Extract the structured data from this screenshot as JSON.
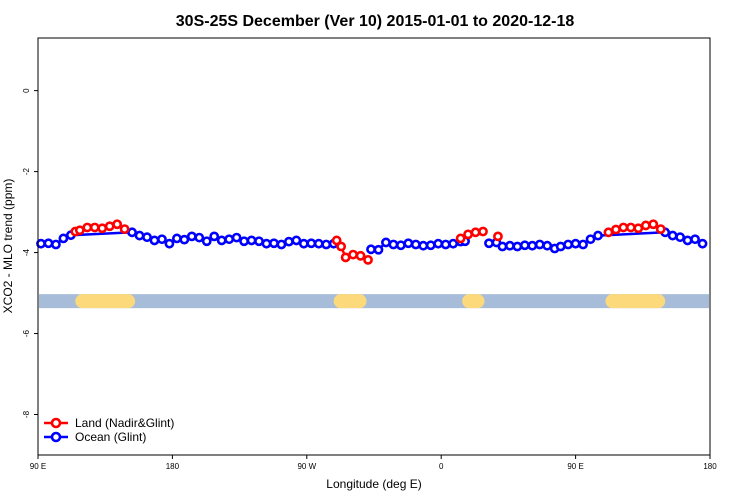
{
  "chart_data": {
    "type": "line",
    "title": "30S-25S December (Ver 10)   2015-01-01 to 2020-12-18",
    "xlabel": "Longitude (deg E)",
    "ylabel": "XCO2 - MLO trend (ppm)",
    "xlim": [
      90,
      540
    ],
    "ylim": [
      -9,
      1.3
    ],
    "x_ticks": [
      {
        "value": 90,
        "label": "90 E"
      },
      {
        "value": 180,
        "label": "180"
      },
      {
        "value": 270,
        "label": "90 W"
      },
      {
        "value": 360,
        "label": "0"
      },
      {
        "value": 450,
        "label": "90 E"
      },
      {
        "value": 540,
        "label": "180"
      }
    ],
    "y_ticks": [
      {
        "value": 0,
        "label": "0"
      },
      {
        "value": -2,
        "label": "-2"
      },
      {
        "value": -4,
        "label": "-4"
      },
      {
        "value": -6,
        "label": "-6"
      },
      {
        "value": -8,
        "label": "-8"
      }
    ],
    "land_mask": {
      "y": -5.2,
      "ocean_color": "#a7bcd9",
      "land_color": "#fcd97a",
      "land_ranges": [
        [
          115,
          155
        ],
        [
          288,
          310
        ],
        [
          374,
          389
        ],
        [
          470,
          510
        ]
      ]
    },
    "legend": {
      "position": "bottom-left",
      "entries": [
        {
          "label": "Land (Nadir&Glint)",
          "color": "#ff0000"
        },
        {
          "label": "Ocean (Glint)",
          "color": "#0000ff"
        }
      ]
    },
    "series": [
      {
        "name": "Land (Nadir&Glint)",
        "color": "#ff0000",
        "segments": [
          [
            [
              115,
              -3.48
            ],
            [
              118,
              -3.45
            ],
            [
              123,
              -3.38
            ],
            [
              128,
              -3.38
            ],
            [
              133,
              -3.4
            ],
            [
              138,
              -3.35
            ],
            [
              143,
              -3.3
            ],
            [
              148,
              -3.42
            ]
          ],
          [
            [
              290,
              -3.7
            ],
            [
              293,
              -3.85
            ],
            [
              296,
              -4.12
            ],
            [
              301,
              -4.05
            ],
            [
              306,
              -4.08
            ],
            [
              311,
              -4.18
            ]
          ],
          [
            [
              373,
              -3.65
            ],
            [
              378,
              -3.55
            ],
            [
              383,
              -3.5
            ],
            [
              388,
              -3.48
            ]
          ],
          [
            [
              398,
              -3.6
            ]
          ],
          [
            [
              472,
              -3.5
            ],
            [
              477,
              -3.43
            ],
            [
              482,
              -3.38
            ],
            [
              487,
              -3.38
            ],
            [
              492,
              -3.4
            ],
            [
              497,
              -3.33
            ],
            [
              502,
              -3.3
            ],
            [
              507,
              -3.42
            ]
          ]
        ]
      },
      {
        "name": "Ocean (Glint)",
        "color": "#0000ff",
        "segments": [
          [
            [
              92,
              -3.78
            ],
            [
              97,
              -3.77
            ],
            [
              102,
              -3.8
            ],
            [
              107,
              -3.65
            ],
            [
              112,
              -3.57
            ],
            [
              153,
              -3.5
            ],
            [
              158,
              -3.58
            ],
            [
              163,
              -3.62
            ],
            [
              168,
              -3.7
            ],
            [
              173,
              -3.67
            ],
            [
              178,
              -3.78
            ],
            [
              183,
              -3.65
            ],
            [
              188,
              -3.68
            ],
            [
              193,
              -3.6
            ],
            [
              198,
              -3.63
            ],
            [
              203,
              -3.72
            ],
            [
              208,
              -3.6
            ],
            [
              213,
              -3.7
            ],
            [
              218,
              -3.67
            ],
            [
              223,
              -3.63
            ],
            [
              228,
              -3.72
            ],
            [
              233,
              -3.7
            ],
            [
              238,
              -3.72
            ],
            [
              243,
              -3.78
            ],
            [
              248,
              -3.77
            ],
            [
              253,
              -3.8
            ],
            [
              258,
              -3.73
            ],
            [
              263,
              -3.7
            ],
            [
              268,
              -3.78
            ],
            [
              273,
              -3.77
            ],
            [
              278,
              -3.78
            ],
            [
              283,
              -3.8
            ],
            [
              288,
              -3.78
            ]
          ],
          [
            [
              313,
              -3.92
            ],
            [
              318,
              -3.93
            ],
            [
              323,
              -3.75
            ],
            [
              328,
              -3.8
            ],
            [
              333,
              -3.82
            ],
            [
              338,
              -3.77
            ],
            [
              343,
              -3.8
            ],
            [
              348,
              -3.83
            ],
            [
              353,
              -3.82
            ],
            [
              358,
              -3.78
            ],
            [
              363,
              -3.8
            ],
            [
              368,
              -3.78
            ],
            [
              373,
              -3.73
            ],
            [
              376,
              -3.72
            ]
          ],
          [
            [
              392,
              -3.77
            ],
            [
              397,
              -3.75
            ],
            [
              401,
              -3.85
            ],
            [
              406,
              -3.83
            ],
            [
              411,
              -3.85
            ],
            [
              416,
              -3.82
            ],
            [
              421,
              -3.83
            ],
            [
              426,
              -3.8
            ],
            [
              431,
              -3.83
            ],
            [
              436,
              -3.9
            ],
            [
              440,
              -3.85
            ],
            [
              445,
              -3.8
            ],
            [
              450,
              -3.78
            ],
            [
              455,
              -3.8
            ],
            [
              460,
              -3.67
            ],
            [
              465,
              -3.58
            ],
            [
              510,
              -3.5
            ],
            [
              515,
              -3.58
            ],
            [
              520,
              -3.62
            ],
            [
              525,
              -3.7
            ],
            [
              530,
              -3.67
            ],
            [
              535,
              -3.78
            ]
          ]
        ]
      }
    ]
  }
}
